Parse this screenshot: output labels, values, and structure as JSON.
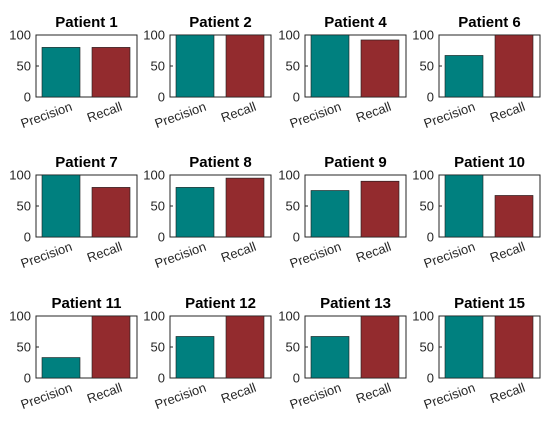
{
  "chart_data": [
    {
      "type": "bar",
      "title": "Patient 1",
      "categories": [
        "Precision",
        "Recall"
      ],
      "values": [
        80,
        80
      ],
      "ylim": [
        0,
        100
      ],
      "yticks": [
        "0",
        "50",
        "100"
      ],
      "colors": [
        "#00807f",
        "#932b2e"
      ]
    },
    {
      "type": "bar",
      "title": "Patient 2",
      "categories": [
        "Precision",
        "Recall"
      ],
      "values": [
        100,
        100
      ],
      "ylim": [
        0,
        100
      ],
      "yticks": [
        "0",
        "50",
        "100"
      ],
      "colors": [
        "#00807f",
        "#932b2e"
      ]
    },
    {
      "type": "bar",
      "title": "Patient 4",
      "categories": [
        "Precision",
        "Recall"
      ],
      "values": [
        100,
        92
      ],
      "ylim": [
        0,
        100
      ],
      "yticks": [
        "0",
        "50",
        "100"
      ],
      "colors": [
        "#00807f",
        "#932b2e"
      ]
    },
    {
      "type": "bar",
      "title": "Patient 6",
      "categories": [
        "Precision",
        "Recall"
      ],
      "values": [
        67,
        100
      ],
      "ylim": [
        0,
        100
      ],
      "yticks": [
        "0",
        "50",
        "100"
      ],
      "colors": [
        "#00807f",
        "#932b2e"
      ]
    },
    {
      "type": "bar",
      "title": "Patient 7",
      "categories": [
        "Precision",
        "Recall"
      ],
      "values": [
        100,
        80
      ],
      "ylim": [
        0,
        100
      ],
      "yticks": [
        "0",
        "50",
        "100"
      ],
      "colors": [
        "#00807f",
        "#932b2e"
      ]
    },
    {
      "type": "bar",
      "title": "Patient 8",
      "categories": [
        "Precision",
        "Recall"
      ],
      "values": [
        80,
        95
      ],
      "ylim": [
        0,
        100
      ],
      "yticks": [
        "0",
        "50",
        "100"
      ],
      "colors": [
        "#00807f",
        "#932b2e"
      ]
    },
    {
      "type": "bar",
      "title": "Patient 9",
      "categories": [
        "Precision",
        "Recall"
      ],
      "values": [
        75,
        90
      ],
      "ylim": [
        0,
        100
      ],
      "yticks": [
        "0",
        "50",
        "100"
      ],
      "colors": [
        "#00807f",
        "#932b2e"
      ]
    },
    {
      "type": "bar",
      "title": "Patient 10",
      "categories": [
        "Precision",
        "Recall"
      ],
      "values": [
        100,
        67
      ],
      "ylim": [
        0,
        100
      ],
      "yticks": [
        "0",
        "50",
        "100"
      ],
      "colors": [
        "#00807f",
        "#932b2e"
      ]
    },
    {
      "type": "bar",
      "title": "Patient 11",
      "categories": [
        "Precision",
        "Recall"
      ],
      "values": [
        33,
        100
      ],
      "ylim": [
        0,
        100
      ],
      "yticks": [
        "0",
        "50",
        "100"
      ],
      "colors": [
        "#00807f",
        "#932b2e"
      ]
    },
    {
      "type": "bar",
      "title": "Patient 12",
      "categories": [
        "Precision",
        "Recall"
      ],
      "values": [
        67,
        100
      ],
      "ylim": [
        0,
        100
      ],
      "yticks": [
        "0",
        "50",
        "100"
      ],
      "colors": [
        "#00807f",
        "#932b2e"
      ]
    },
    {
      "type": "bar",
      "title": "Patient 13",
      "categories": [
        "Precision",
        "Recall"
      ],
      "values": [
        67,
        100
      ],
      "ylim": [
        0,
        100
      ],
      "yticks": [
        "0",
        "50",
        "100"
      ],
      "colors": [
        "#00807f",
        "#932b2e"
      ]
    },
    {
      "type": "bar",
      "title": "Patient 15",
      "categories": [
        "Precision",
        "Recall"
      ],
      "values": [
        100,
        100
      ],
      "ylim": [
        0,
        100
      ],
      "yticks": [
        "0",
        "50",
        "100"
      ],
      "colors": [
        "#00807f",
        "#932b2e"
      ]
    }
  ]
}
